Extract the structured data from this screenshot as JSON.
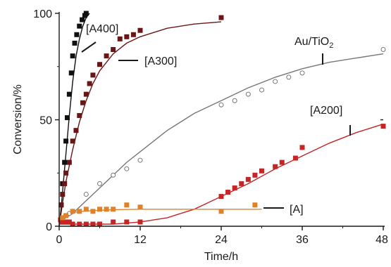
{
  "chart_data": {
    "type": "scatter",
    "xlabel": "Time/h",
    "ylabel": "Conversion/%",
    "xlim": [
      0,
      48
    ],
    "ylim": [
      0,
      100
    ],
    "xticks": [
      0,
      12,
      24,
      36,
      48
    ],
    "yticks": [
      0,
      50,
      100
    ],
    "grid": false,
    "series": [
      {
        "name": "[A400]",
        "marker": "square-filled",
        "color": "#111111",
        "points": [
          [
            0.3,
            10
          ],
          [
            0.5,
            20
          ],
          [
            0.8,
            30
          ],
          [
            1.0,
            40
          ],
          [
            1.2,
            51
          ],
          [
            1.5,
            62
          ],
          [
            1.8,
            72
          ],
          [
            2.0,
            80
          ],
          [
            2.3,
            86
          ],
          [
            2.6,
            90
          ],
          [
            3.0,
            94
          ],
          [
            3.4,
            97
          ],
          [
            3.8,
            99
          ],
          [
            4.0,
            100
          ]
        ],
        "fit": [
          [
            0,
            0
          ],
          [
            0.3,
            9
          ],
          [
            0.6,
            20
          ],
          [
            1,
            34
          ],
          [
            1.5,
            52
          ],
          [
            2,
            68
          ],
          [
            2.5,
            80
          ],
          [
            3,
            88
          ],
          [
            3.5,
            94
          ],
          [
            4,
            98
          ],
          [
            4.5,
            100
          ]
        ]
      },
      {
        "name": "[A300]",
        "marker": "square-filled",
        "color": "#6b1616",
        "points": [
          [
            0.3,
            10
          ],
          [
            0.5,
            15
          ],
          [
            0.8,
            20
          ],
          [
            1.0,
            25
          ],
          [
            1.5,
            30
          ],
          [
            2.0,
            40
          ],
          [
            2.5,
            45
          ],
          [
            3.0,
            52
          ],
          [
            3.5,
            58
          ],
          [
            4.0,
            62
          ],
          [
            4.5,
            67
          ],
          [
            5.0,
            71
          ],
          [
            6.0,
            76
          ],
          [
            7.0,
            80
          ],
          [
            8.0,
            83
          ],
          [
            9.0,
            88
          ],
          [
            10.0,
            89
          ],
          [
            11.0,
            90
          ],
          [
            12.0,
            92
          ],
          [
            24.0,
            98
          ]
        ],
        "fit": [
          [
            0,
            0
          ],
          [
            0.5,
            11
          ],
          [
            1,
            21
          ],
          [
            2,
            36
          ],
          [
            3,
            49
          ],
          [
            4,
            59
          ],
          [
            5,
            67
          ],
          [
            6,
            73
          ],
          [
            8,
            81
          ],
          [
            10,
            86
          ],
          [
            12,
            89
          ],
          [
            16,
            93
          ],
          [
            20,
            95
          ],
          [
            24,
            96
          ]
        ]
      },
      {
        "name": "Au/TiO2",
        "marker": "circle-open",
        "color": "#777777",
        "points": [
          [
            0.5,
            3
          ],
          [
            1.0,
            5
          ],
          [
            1.5,
            6
          ],
          [
            2.0,
            7
          ],
          [
            4.0,
            15
          ],
          [
            6.0,
            20
          ],
          [
            8.0,
            24
          ],
          [
            10.0,
            27
          ],
          [
            12.0,
            31
          ],
          [
            24.0,
            57
          ],
          [
            26.0,
            59
          ],
          [
            28.0,
            62
          ],
          [
            30.0,
            64
          ],
          [
            32.0,
            68
          ],
          [
            34.0,
            70
          ],
          [
            36.0,
            72
          ],
          [
            48.0,
            83
          ]
        ],
        "fit": [
          [
            0,
            2
          ],
          [
            2,
            6
          ],
          [
            4,
            12
          ],
          [
            6,
            18
          ],
          [
            8,
            24
          ],
          [
            10,
            30
          ],
          [
            12,
            35
          ],
          [
            16,
            45
          ],
          [
            20,
            53
          ],
          [
            24,
            59
          ],
          [
            28,
            65
          ],
          [
            32,
            70
          ],
          [
            36,
            74
          ],
          [
            40,
            77
          ],
          [
            44,
            79
          ],
          [
            48,
            81
          ]
        ]
      },
      {
        "name": "[A200]",
        "marker": "square-filled",
        "color": "#c42525",
        "points": [
          [
            0.2,
            3
          ],
          [
            0.5,
            2
          ],
          [
            1.0,
            2
          ],
          [
            1.5,
            2
          ],
          [
            2.0,
            1
          ],
          [
            3.0,
            1
          ],
          [
            4.0,
            1
          ],
          [
            5.0,
            1
          ],
          [
            6.0,
            1
          ],
          [
            8.0,
            2
          ],
          [
            10.0,
            2
          ],
          [
            12.0,
            2
          ],
          [
            24.0,
            14
          ],
          [
            25.0,
            16
          ],
          [
            26.0,
            18
          ],
          [
            27.0,
            20
          ],
          [
            28.0,
            22
          ],
          [
            29.0,
            24
          ],
          [
            30.0,
            26
          ],
          [
            32.0,
            28
          ],
          [
            33.0,
            30
          ],
          [
            35.0,
            32
          ],
          [
            36.0,
            37
          ],
          [
            48.0,
            47
          ]
        ],
        "fit": [
          [
            0,
            1
          ],
          [
            4,
            1
          ],
          [
            8,
            1
          ],
          [
            12,
            2
          ],
          [
            14,
            3
          ],
          [
            16,
            4
          ],
          [
            18,
            6
          ],
          [
            20,
            8
          ],
          [
            22,
            11
          ],
          [
            24,
            14
          ],
          [
            28,
            20
          ],
          [
            32,
            27
          ],
          [
            36,
            33
          ],
          [
            40,
            39
          ],
          [
            44,
            44
          ],
          [
            48,
            48
          ]
        ]
      },
      {
        "name": "[A]",
        "marker": "square-filled",
        "color": "#e0822a",
        "points": [
          [
            0.5,
            4
          ],
          [
            1.0,
            5
          ],
          [
            2.0,
            7
          ],
          [
            3.0,
            7
          ],
          [
            4.0,
            8
          ],
          [
            5.0,
            7
          ],
          [
            6.0,
            8
          ],
          [
            7.0,
            8
          ],
          [
            8.0,
            8
          ],
          [
            10.0,
            10
          ],
          [
            12.0,
            9
          ],
          [
            24.0,
            7
          ],
          [
            29.0,
            10
          ]
        ],
        "fit": [
          [
            0,
            4
          ],
          [
            1,
            5.5
          ],
          [
            2,
            6.5
          ],
          [
            4,
            7.2
          ],
          [
            8,
            7.8
          ],
          [
            12,
            8
          ],
          [
            18,
            8
          ],
          [
            24,
            8
          ],
          [
            30,
            8
          ]
        ]
      }
    ],
    "annotations": [
      {
        "text": "[A400]",
        "series": "[A400]"
      },
      {
        "text": "[A300]",
        "series": "[A300]"
      },
      {
        "text": "Au/TiO2",
        "series": "Au/TiO2"
      },
      {
        "text": "[A200]",
        "series": "[A200]"
      },
      {
        "text": "[A]",
        "series": "[A]"
      }
    ]
  }
}
